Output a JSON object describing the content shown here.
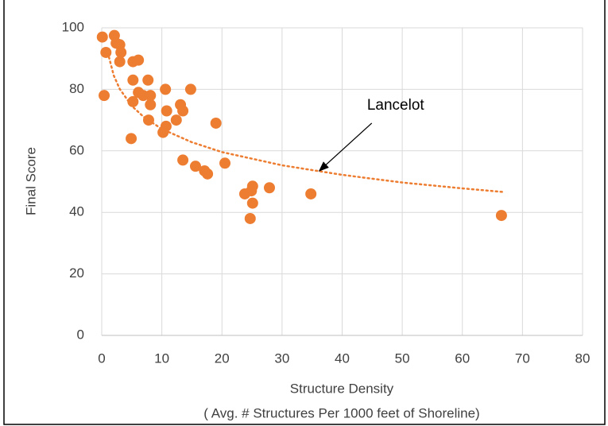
{
  "chart_data": {
    "type": "scatter",
    "x_label": "Structure Density",
    "x_label_2": "( Avg. # Structures Per 1000 feet of Shoreline)",
    "y_label": "Final Score",
    "xlim": [
      0,
      80
    ],
    "xticks": [
      0,
      10,
      20,
      30,
      40,
      50,
      60,
      70,
      80
    ],
    "ylim": [
      0,
      100
    ],
    "yticks": [
      0,
      20,
      40,
      60,
      80,
      100
    ],
    "grid": true,
    "series": [
      {
        "color": "#ed7d31",
        "x": [
          0.1,
          0.4,
          0.7,
          2.1,
          2.4,
          3,
          3.2,
          3,
          5.2,
          6.1,
          5.2,
          7.7,
          6.1,
          6.9,
          8.1,
          8.1,
          5.2,
          7.8,
          10.6,
          14.8,
          10.8,
          13.1,
          13.5,
          12.4,
          10.7,
          10.2,
          4.9,
          19,
          13.5,
          15.6,
          17.1,
          17.6,
          20.5,
          23.8,
          24.9,
          25.1,
          25.1,
          24.7,
          27.9,
          34.8,
          66.5
        ],
        "values": [
          97,
          78,
          92,
          97.5,
          95,
          94.5,
          92,
          89,
          89,
          89.5,
          83,
          83,
          79,
          78,
          78,
          75,
          76,
          70,
          80,
          80,
          73,
          75,
          73,
          70,
          68,
          66,
          64,
          69,
          57,
          55,
          53.5,
          52.5,
          56,
          46,
          47,
          48.5,
          43,
          38,
          48,
          46,
          39
        ]
      }
    ],
    "trendline": {
      "color": "#ed7d31",
      "x": [
        1,
        2,
        3,
        5,
        7,
        10,
        15,
        20,
        30,
        40,
        50,
        60,
        67
      ],
      "values": [
        92,
        84.5,
        80.1,
        74.6,
        71,
        67.1,
        62.8,
        59.6,
        55.3,
        52.2,
        49.7,
        47.8,
        46.6
      ]
    },
    "annotation": {
      "text": "Lancelot",
      "x": 36.2,
      "y": 53.5
    }
  }
}
